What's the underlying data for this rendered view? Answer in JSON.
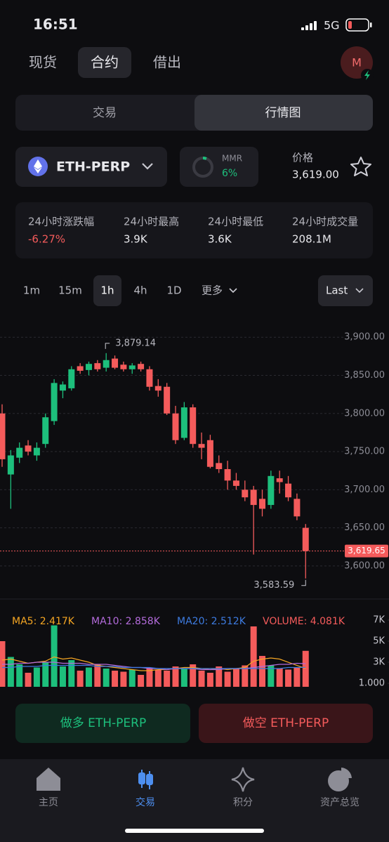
{
  "status": {
    "time": "16:51",
    "network": "5G"
  },
  "tabs": [
    "现货",
    "合约",
    "借出"
  ],
  "avatar": "M",
  "segments": [
    "交易",
    "行情图"
  ],
  "market": {
    "symbol": "ETH-PERP",
    "mmr_label": "MMR",
    "mmr": "6%",
    "price_label": "价格",
    "price": "3,619.00"
  },
  "stats": [
    {
      "label": "24小时涨跌幅",
      "value": "-6.27%"
    },
    {
      "label": "24小时最高",
      "value": "3.9K"
    },
    {
      "label": "24小时最低",
      "value": "3.6K"
    },
    {
      "label": "24小时成交量",
      "value": "208.1M"
    }
  ],
  "timeframes": [
    "1m",
    "15m",
    "1h",
    "4h",
    "1D",
    "更多"
  ],
  "price_type": "Last",
  "chart": {
    "ylim": [
      3564,
      3914
    ],
    "yticks": [
      {
        "value": 3900,
        "label": "3,900.00"
      },
      {
        "value": 3850,
        "label": "3,850.00"
      },
      {
        "value": 3800,
        "label": "3,800.00"
      },
      {
        "value": 3750,
        "label": "3,750.00"
      },
      {
        "value": 3700,
        "label": "3,700.00"
      },
      {
        "value": 3650,
        "label": "3,650.00"
      },
      {
        "value": 3600,
        "label": "3,600.00"
      }
    ],
    "up_color": "#1dbf7c",
    "down_color": "#f45b5b",
    "candles": [
      {
        "open": 3800,
        "high": 3812,
        "low": 3730,
        "close": 3740
      },
      {
        "open": 3720,
        "high": 3752,
        "low": 3675,
        "close": 3745
      },
      {
        "open": 3742,
        "high": 3762,
        "low": 3735,
        "close": 3755
      },
      {
        "open": 3758,
        "high": 3765,
        "low": 3745,
        "close": 3750
      },
      {
        "open": 3745,
        "high": 3762,
        "low": 3738,
        "close": 3755
      },
      {
        "open": 3760,
        "high": 3800,
        "low": 3755,
        "close": 3795
      },
      {
        "open": 3790,
        "high": 3845,
        "low": 3785,
        "close": 3840
      },
      {
        "open": 3830,
        "high": 3842,
        "low": 3820,
        "close": 3838
      },
      {
        "open": 3833,
        "high": 3862,
        "low": 3830,
        "close": 3858
      },
      {
        "open": 3862,
        "high": 3866,
        "low": 3852,
        "close": 3856
      },
      {
        "open": 3857,
        "high": 3868,
        "low": 3850,
        "close": 3865
      },
      {
        "open": 3866,
        "high": 3870,
        "low": 3855,
        "close": 3858
      },
      {
        "open": 3860,
        "high": 3879.14,
        "low": 3855,
        "close": 3870
      },
      {
        "open": 3872,
        "high": 3876,
        "low": 3858,
        "close": 3860
      },
      {
        "open": 3864,
        "high": 3868,
        "low": 3855,
        "close": 3858
      },
      {
        "open": 3858,
        "high": 3866,
        "low": 3852,
        "close": 3863
      },
      {
        "open": 3865,
        "high": 3868,
        "low": 3855,
        "close": 3858
      },
      {
        "open": 3858,
        "high": 3862,
        "low": 3830,
        "close": 3835
      },
      {
        "open": 3836,
        "high": 3845,
        "low": 3822,
        "close": 3830
      },
      {
        "open": 3835,
        "high": 3840,
        "low": 3798,
        "close": 3800
      },
      {
        "open": 3800,
        "high": 3810,
        "low": 3760,
        "close": 3765
      },
      {
        "open": 3768,
        "high": 3815,
        "low": 3765,
        "close": 3808
      },
      {
        "open": 3808,
        "high": 3812,
        "low": 3755,
        "close": 3760
      },
      {
        "open": 3760,
        "high": 3775,
        "low": 3740,
        "close": 3755
      },
      {
        "open": 3765,
        "high": 3772,
        "low": 3728,
        "close": 3730
      },
      {
        "open": 3735,
        "high": 3745,
        "low": 3722,
        "close": 3727
      },
      {
        "open": 3727,
        "high": 3738,
        "low": 3700,
        "close": 3712
      },
      {
        "open": 3712,
        "high": 3722,
        "low": 3700,
        "close": 3705
      },
      {
        "open": 3700,
        "high": 3712,
        "low": 3685,
        "close": 3690
      },
      {
        "open": 3700,
        "high": 3705,
        "low": 3615,
        "close": 3680
      },
      {
        "open": 3688,
        "high": 3700,
        "low": 3665,
        "close": 3675
      },
      {
        "open": 3680,
        "high": 3725,
        "low": 3675,
        "close": 3718
      },
      {
        "open": 3715,
        "high": 3725,
        "low": 3695,
        "close": 3710
      },
      {
        "open": 3708,
        "high": 3718,
        "low": 3685,
        "close": 3690
      },
      {
        "open": 3688,
        "high": 3695,
        "low": 3660,
        "close": 3665
      },
      {
        "open": 3650,
        "high": 3655,
        "low": 3583.59,
        "close": 3619.65
      }
    ],
    "last_price": {
      "value": 3619.65,
      "label": "3,619.65"
    },
    "high_label": "3,879.14",
    "low_label": "3,583.59",
    "volume": {
      "ylim": [
        667,
        7867
      ],
      "yticks": [
        {
          "value": 7000,
          "label": "7K"
        },
        {
          "value": 5000,
          "label": "5K"
        },
        {
          "value": 3000,
          "label": "3K"
        },
        {
          "value": 1000,
          "label": "1.000"
        }
      ],
      "values": [
        5000,
        3500,
        2800,
        2000,
        2500,
        3000,
        6500,
        2600,
        3200,
        2200,
        2500,
        2800,
        2400,
        2200,
        2100,
        2300,
        1800,
        2500,
        2300,
        2200,
        2600,
        2400,
        2800,
        2200,
        2000,
        2600,
        2100,
        2400,
        2700,
        6400,
        3600,
        2700,
        2400,
        2300,
        2500,
        4081
      ],
      "legend": [
        {
          "text": "MA5: 2.417K",
          "color": "#f5a623"
        },
        {
          "text": "MA10: 2.858K",
          "color": "#b36bdb"
        },
        {
          "text": "MA20: 2.512K",
          "color": "#3d7be0"
        },
        {
          "text": "VOLUME: 4.081K",
          "color": "#f45b5b"
        }
      ],
      "ma": [
        {
          "color": "#f5a623",
          "values": [
            3200,
            3300,
            3100,
            2900,
            3000,
            3100,
            3500,
            3300,
            3400,
            3200,
            3000,
            2700,
            2600,
            2500,
            2400,
            2300,
            2200,
            2200,
            2300,
            2300,
            2400,
            2500,
            2500,
            2400,
            2300,
            2400,
            2300,
            2400,
            2500,
            3100,
            3300,
            3400,
            3300,
            3000,
            2700,
            2417
          ]
        },
        {
          "color": "#b36bdb",
          "values": [
            2800,
            2800,
            2900,
            2900,
            3000,
            3000,
            3000,
            2900,
            2900,
            2900,
            2800,
            2800,
            2800,
            2700,
            2600,
            2500,
            2500,
            2400,
            2400,
            2300,
            2400,
            2400,
            2400,
            2300,
            2300,
            2300,
            2400,
            2400,
            2400,
            2500,
            2600,
            2700,
            2800,
            2800,
            2900,
            2858
          ]
        },
        {
          "color": "#3d7be0",
          "values": [
            2500,
            2500,
            2600,
            2600,
            2600,
            2700,
            2700,
            2700,
            2700,
            2700,
            2700,
            2600,
            2600,
            2600,
            2500,
            2500,
            2500,
            2500,
            2400,
            2400,
            2400,
            2400,
            2400,
            2400,
            2400,
            2400,
            2400,
            2400,
            2400,
            2400,
            2400,
            2400,
            2400,
            2500,
            2500,
            2512
          ]
        }
      ]
    }
  },
  "actions": [
    "做多 ETH-PERP",
    "做空 ETH-PERP"
  ],
  "nav": [
    "主页",
    "交易",
    "积分",
    "资产总览"
  ]
}
